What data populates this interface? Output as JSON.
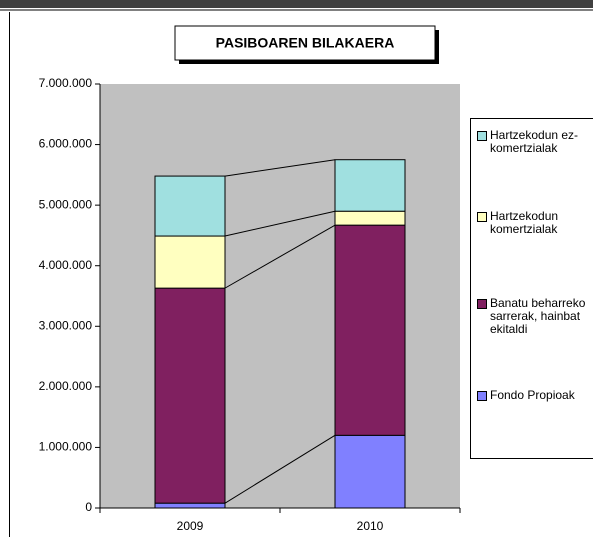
{
  "chart_data": {
    "type": "stacked_bar",
    "title": "PASIBOAREN BILAKAERA",
    "categories": [
      "2009",
      "2010"
    ],
    "series": [
      {
        "name": "Fondo Propioak",
        "color": "#8080ff",
        "values": [
          80000,
          1200000
        ]
      },
      {
        "name": "Banatu beharreko sarrerak, hainbat ekitaldi",
        "color": "#802060",
        "values": [
          3550000,
          3470000
        ]
      },
      {
        "name": "Hartzekodun komertzialak",
        "color": "#ffffc0",
        "values": [
          860000,
          230000
        ]
      },
      {
        "name": "Hartzekodun ez-komertzialak",
        "color": "#a0e0e0",
        "values": [
          990000,
          850000
        ]
      }
    ],
    "ylim": [
      0,
      7000000
    ],
    "yticks": [
      0,
      {
        "value": 1000000,
        "label": "1.000.000"
      },
      {
        "value": 2000000,
        "label": "2.000.000"
      },
      {
        "value": 3000000,
        "label": "3.000.000"
      },
      {
        "value": 4000000,
        "label": "4.000.000"
      },
      {
        "value": 5000000,
        "label": "5.000.000"
      },
      {
        "value": 6000000,
        "label": "6.000.000"
      },
      {
        "value": 7000000,
        "label": "7.000.000"
      }
    ],
    "series_lines": true
  }
}
